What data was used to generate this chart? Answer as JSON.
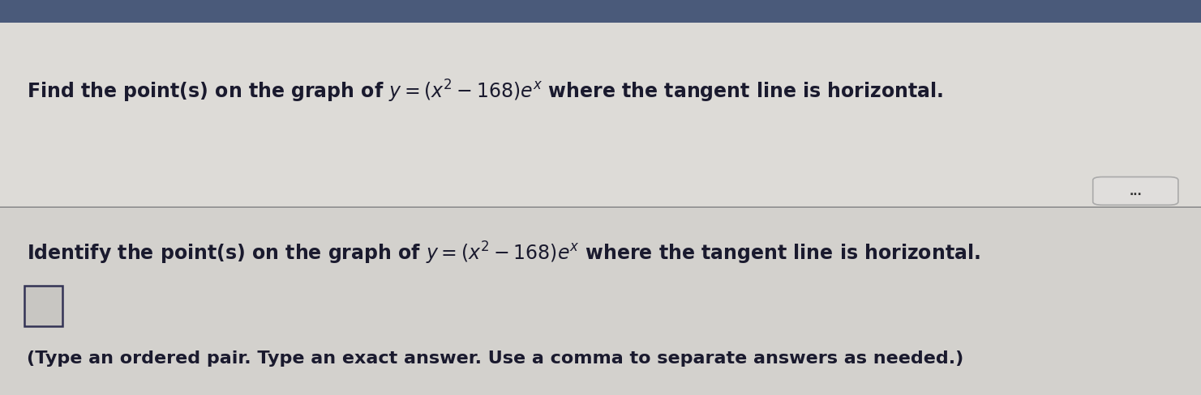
{
  "bg_color": "#c8c6c2",
  "top_section_bg": "#dcdad6",
  "bottom_section_bg": "#d4d2ce",
  "divider_color": "#888888",
  "text_color": "#1a1a2e",
  "title_text_plain": "Find the point(s) on the graph of ",
  "title_math": "$y = (x^2 - 168)e^x$",
  "title_text_end": " where the tangent line is horizontal.",
  "identify_text_plain": "Identify the point(s) on the graph of ",
  "identify_math": "$y = (x^2 - 168)e^x$",
  "identify_text_end": " where the tangent line is horizontal.",
  "instruction_text": "(Type an ordered pair. Type an exact answer. Use a comma to separate answers as needed.)",
  "dots_button_text": "...",
  "top_bar_color": "#4a5a7a",
  "top_bar_height": 0.06
}
